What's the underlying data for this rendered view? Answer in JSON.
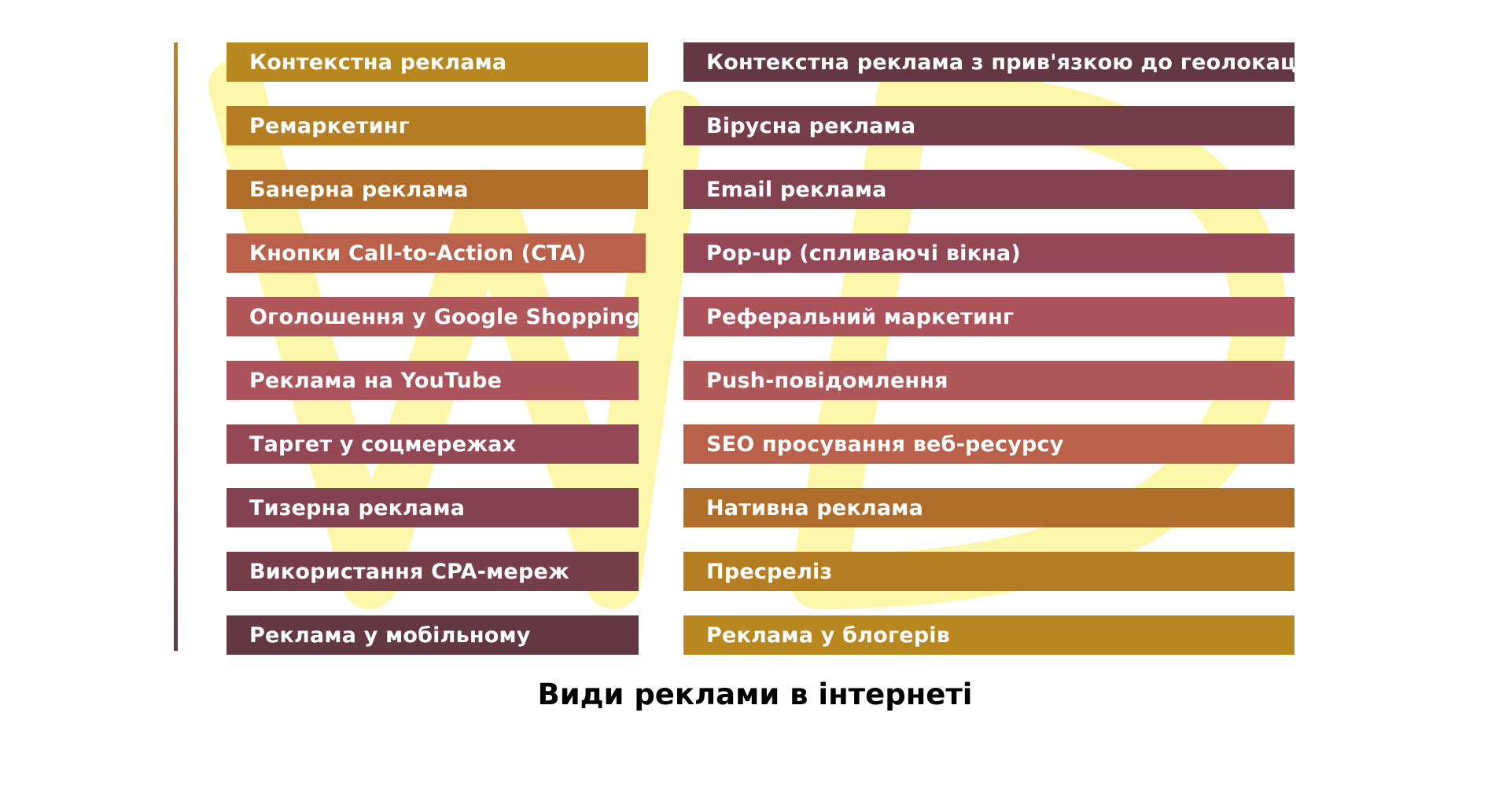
{
  "title": "Види реклами в інтернеті",
  "watermark_color": "#fdf7a6",
  "left_column": [
    {
      "label": "Контекстна реклама",
      "color": "#b8871f"
    },
    {
      "label": "Ремаркетинг",
      "color": "#b57e22"
    },
    {
      "label": "Банерна реклама",
      "color": "#b06d2a"
    },
    {
      "label": "Кнопки Call-to-Action (CTA)",
      "color": "#b9614a"
    },
    {
      "label": "Оголошення у Google Shopping",
      "color": "#b05759"
    },
    {
      "label": "Реклама на YouTube",
      "color": "#ab525a"
    },
    {
      "label": "Таргет у соцмережах",
      "color": "#944856"
    },
    {
      "label": "Тизерна реклама",
      "color": "#83424f"
    },
    {
      "label": "Використання CPA-мереж",
      "color": "#763d4b"
    },
    {
      "label": "Реклама у мобільному",
      "color": "#643744"
    }
  ],
  "right_column": [
    {
      "label": "Контекстна реклама з прив'язкою до геолокації",
      "color": "#643744"
    },
    {
      "label": "Вірусна реклама",
      "color": "#763d4b"
    },
    {
      "label": "Email реклама",
      "color": "#83424f"
    },
    {
      "label": "Pop-up (спливаючі вікна)",
      "color": "#944856"
    },
    {
      "label": "Реферальний маркетинг",
      "color": "#ab525a"
    },
    {
      "label": "Push-повідомлення",
      "color": "#b05759"
    },
    {
      "label": "SEO просування веб-ресурсу",
      "color": "#b9614a"
    },
    {
      "label": "Нативна реклама",
      "color": "#b06d2a"
    },
    {
      "label": "Пресреліз",
      "color": "#b57e22"
    },
    {
      "label": "Реклама у блогерів",
      "color": "#b8871f"
    }
  ],
  "side_bar_colors": [
    "#b8871f",
    "#b05759",
    "#643744"
  ]
}
